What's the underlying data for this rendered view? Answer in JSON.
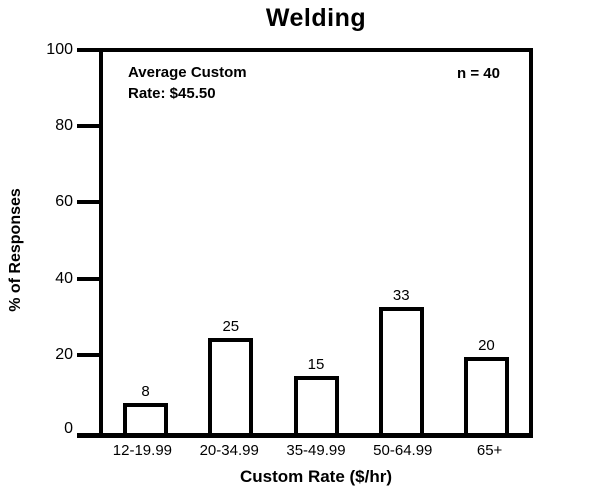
{
  "chart_data": {
    "type": "bar",
    "title": "Welding",
    "categories": [
      "12-19.99",
      "20-34.99",
      "35-49.99",
      "50-64.99",
      "65+"
    ],
    "values": [
      8,
      25,
      15,
      33,
      20
    ],
    "xlabel": "Custom Rate ($/hr)",
    "ylabel": "% of Responses",
    "ylim": [
      0,
      100
    ],
    "yticks": [
      0,
      20,
      40,
      60,
      80,
      100
    ],
    "grid": false,
    "legend_position": "none",
    "annotations": {
      "line1": "Average Custom",
      "line2": "Rate: $45.50",
      "sample_size": "n = 40"
    },
    "colors": {
      "background": "#ffffff",
      "bar_fill": "#ffffff",
      "bar_border": "#000000",
      "axis": "#000000",
      "text": "#000000"
    }
  }
}
